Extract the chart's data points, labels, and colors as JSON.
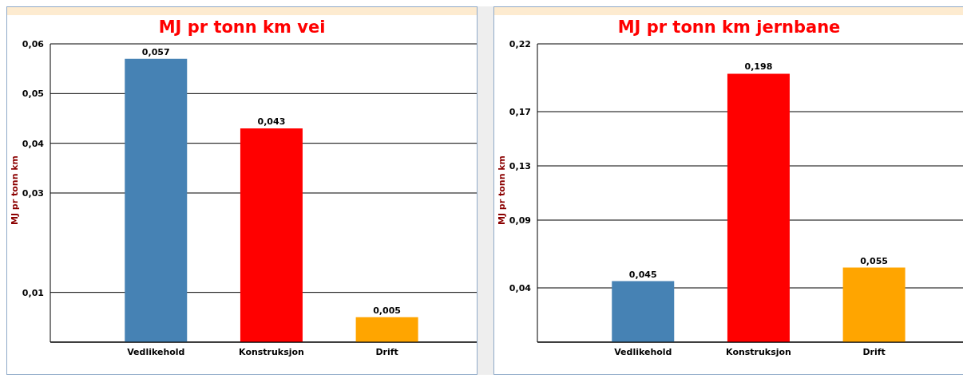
{
  "chart_data": [
    {
      "type": "bar",
      "title": "MJ pr tonn km vei",
      "ylabel": "MJ pr tonn km",
      "categories": [
        "Vedlikehold",
        "Konstruksjon",
        "Drift"
      ],
      "values": [
        0.057,
        0.043,
        0.005
      ],
      "colors": [
        "#4682b4",
        "#ff0000",
        "#ffa500"
      ],
      "value_labels": [
        "0,057",
        "0,043",
        "0,005"
      ],
      "ylim": [
        0,
        0.06
      ],
      "yticks": [
        {
          "value": 0,
          "label": null
        },
        {
          "value": 0.01,
          "label": "0,01"
        },
        {
          "value": 0.03,
          "label": "0,03"
        },
        {
          "value": 0.04,
          "label": "0,04"
        },
        {
          "value": 0.05,
          "label": "0,05"
        },
        {
          "value": 0.06,
          "label": "0,06"
        }
      ],
      "grid": "y",
      "legend": false
    },
    {
      "type": "bar",
      "title": "MJ pr tonn km jernbane",
      "ylabel": "MJ pr tonn km",
      "categories": [
        "Vedlikehold",
        "Konstruksjon",
        "Drift"
      ],
      "values": [
        0.045,
        0.198,
        0.055
      ],
      "colors": [
        "#4682b4",
        "#ff0000",
        "#ffa500"
      ],
      "value_labels": [
        "0,045",
        "0,198",
        "0,055"
      ],
      "ylim": [
        0,
        0.22
      ],
      "yticks": [
        {
          "value": 0,
          "label": null
        },
        {
          "value": 0.04,
          "label": "0,04"
        },
        {
          "value": 0.09,
          "label": "0,09"
        },
        {
          "value": 0.13,
          "label": "0,13"
        },
        {
          "value": 0.17,
          "label": "0,17"
        },
        {
          "value": 0.22,
          "label": "0,22"
        }
      ],
      "grid": "y",
      "legend": false
    }
  ]
}
